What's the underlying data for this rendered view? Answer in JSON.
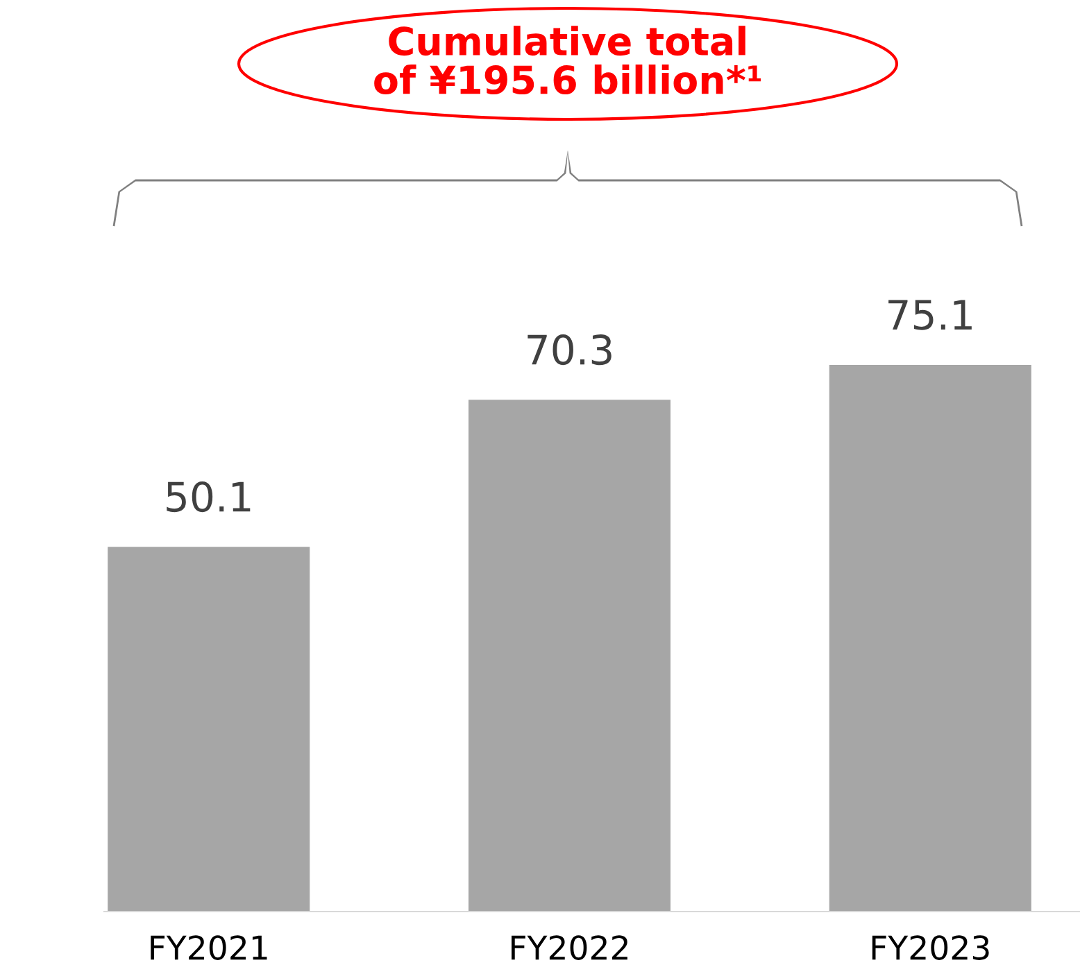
{
  "chart_data": {
    "type": "bar",
    "categories": [
      "FY2021",
      "FY2022",
      "FY2023"
    ],
    "values": [
      50.1,
      70.3,
      75.1
    ],
    "color": "#a6a6a6",
    "data_labels": true,
    "grid": false,
    "legend": false,
    "tick_labels": "x",
    "annotations": [
      "Cumulative total\nof ¥195.6 billion*¹"
    ]
  }
}
